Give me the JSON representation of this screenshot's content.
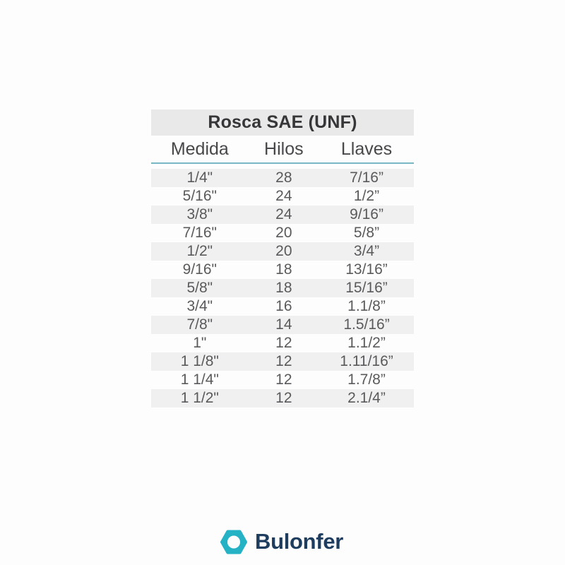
{
  "page": {
    "background": "#fdfdfd"
  },
  "chart_data": {
    "type": "table",
    "title": "Rosca SAE (UNF)",
    "columns": [
      "Medida",
      "Hilos",
      "Llaves"
    ],
    "rows": [
      [
        "1/4\"",
        "28",
        "7/16”"
      ],
      [
        "5/16\"",
        "24",
        "1/2”"
      ],
      [
        "3/8\"",
        "24",
        "9/16”"
      ],
      [
        "7/16\"",
        "20",
        "5/8”"
      ],
      [
        "1/2\"",
        "20",
        "3/4”"
      ],
      [
        "9/16\"",
        "18",
        "13/16”"
      ],
      [
        "5/8\"",
        "18",
        "15/16”"
      ],
      [
        "3/4\"",
        "16",
        "1.1/8”"
      ],
      [
        "7/8\"",
        "14",
        "1.5/16”"
      ],
      [
        "1\"",
        "12",
        "1.1/2”"
      ],
      [
        "1 1/8\"",
        "12",
        "1.11/16”"
      ],
      [
        "1 1/4\"",
        "12",
        "1.7/8”"
      ],
      [
        "1 1/2\"",
        "12",
        "2.1/4”"
      ]
    ],
    "layout": {
      "striped": true,
      "first_row_striped": true,
      "header_rule": true
    }
  },
  "footer": {
    "brand": "Bulonfer",
    "icon": "hex-nut-icon"
  },
  "colors": {
    "page_bg": "#fdfdfd",
    "title_bg": "#e9e9ea",
    "title_fg": "#363638",
    "head_fg": "#48484a",
    "cell_fg": "#5a5a5c",
    "stripe": "#f0f0f0",
    "rule_teal": "#79b7c4",
    "icon_teal": "#26b2c5",
    "brand_navy": "#1d3c5e"
  }
}
